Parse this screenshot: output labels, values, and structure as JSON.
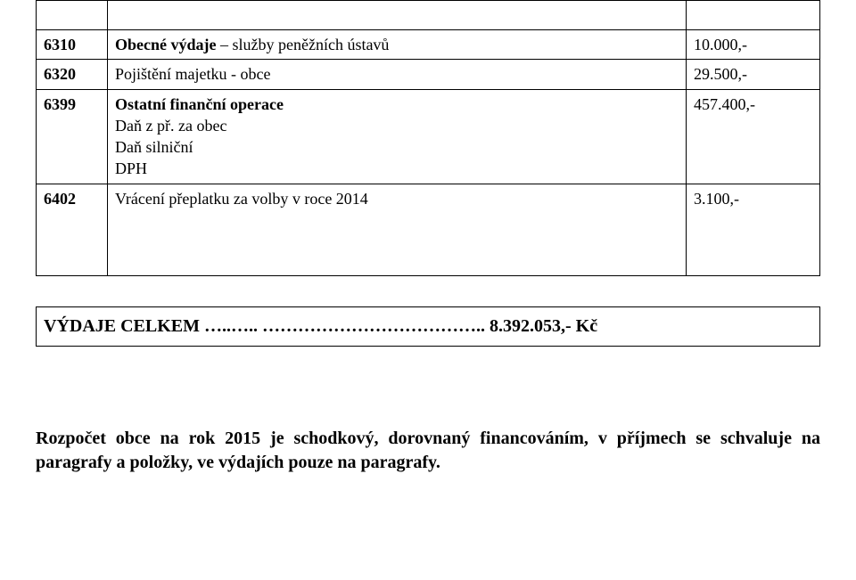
{
  "table": {
    "rows": [
      {
        "code": "6310",
        "desc_bold": "Obecné výdaje",
        "desc_plain": " – služby peněžních ústavů",
        "sub": [],
        "value": "10.000,-"
      },
      {
        "code": "6320",
        "desc_bold": "",
        "desc_plain": "Pojištění majetku - obce",
        "sub": [],
        "value": "29.500,-"
      },
      {
        "code": "6399",
        "desc_bold": "Ostatní finanční operace",
        "desc_plain": "",
        "sub": [
          "Daň z př. za obec",
          "Daň silniční",
          "DPH"
        ],
        "value": "457.400,-"
      },
      {
        "code": "6402",
        "desc_bold": "",
        "desc_plain": "Vrácení přeplatku za volby v roce 2014",
        "sub": [],
        "value": "3.100,-"
      }
    ]
  },
  "summary": {
    "label": "VÝDAJE CELKEM",
    "dots": "…..….. ………………………………..",
    "value": "8.392.053,- Kč"
  },
  "footer": "Rozpočet obce na rok 2015 je schodkový, dorovnaný financováním, v příjmech se schvaluje na paragrafy a položky, ve výdajích pouze na paragrafy."
}
